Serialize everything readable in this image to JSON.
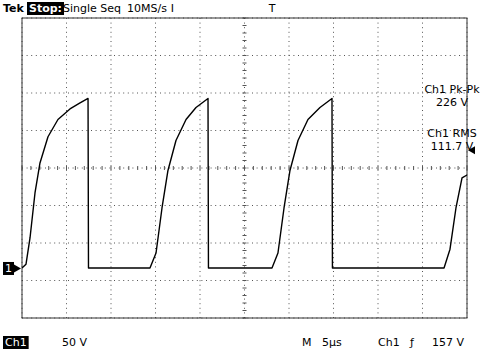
{
  "chart_data": {
    "type": "line",
    "color": "#000000",
    "grid": true,
    "tick_labels": false,
    "xlim": [
      0,
      50
    ],
    "xticks": [
      0,
      5,
      10,
      15,
      20,
      25,
      30,
      35,
      40,
      45,
      50
    ],
    "ylim": [
      -66.7,
      333.3
    ],
    "yticks": [
      -66.7,
      -16.7,
      33.3,
      83.3,
      133.3,
      183.3,
      233.3,
      283.3,
      333.3
    ],
    "x": [
      0,
      0.45,
      0.9,
      1.46,
      2.02,
      2.92,
      4.04,
      5.39,
      6.52,
      7.42,
      7.47,
      14.38,
      15.06,
      15.73,
      16.4,
      17.3,
      18.43,
      19.55,
      20.9,
      20.95,
      28.09,
      28.76,
      29.44,
      30.11,
      31.01,
      32.13,
      33.48,
      34.83,
      34.88,
      47.42,
      48.09,
      48.76,
      49.44,
      50
    ],
    "values": [
      0,
      5,
      40,
      100,
      140,
      175,
      198,
      212,
      220,
      226,
      0,
      0,
      20,
      80,
      130,
      170,
      198,
      214,
      226,
      0,
      0,
      20,
      80,
      130,
      170,
      198,
      214,
      226,
      0,
      0,
      25,
      80,
      120,
      124
    ],
    "trigger_level": 157,
    "annotations": [
      {
        "text": "Tek"
      },
      {
        "text": "Stop:"
      },
      {
        "text": "Single Seq"
      },
      {
        "text": "10MS/s"
      },
      {
        "text": "Ch1 Pk-Pk"
      },
      {
        "text": "226 V"
      },
      {
        "text": "Ch1 RMS"
      },
      {
        "text": "111.7 V"
      },
      {
        "text": "Ch1"
      },
      {
        "text": "50 V"
      },
      {
        "text": "M"
      },
      {
        "text": "5µs"
      },
      {
        "text": "Ch1"
      },
      {
        "text": "ƒ"
      },
      {
        "text": "157 V"
      },
      {
        "text": "T",
        "x": 28.1
      },
      {
        "text": "I",
        "x": 16.9
      },
      {
        "text": "1",
        "y": 0
      }
    ]
  }
}
